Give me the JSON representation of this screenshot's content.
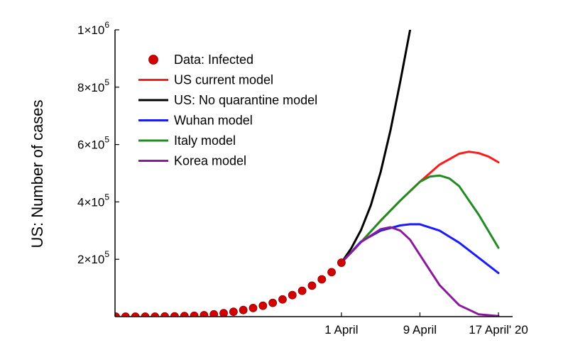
{
  "chart_data": {
    "type": "line",
    "title": "",
    "xlabel": "",
    "ylabel": "US: Number of cases",
    "y_tick_values": [
      200000,
      400000,
      600000,
      800000,
      1000000
    ],
    "y_tick_labels": [
      {
        "base": "2×10",
        "exp": "5"
      },
      {
        "base": "4×10",
        "exp": "5"
      },
      {
        "base": "6×10",
        "exp": "5"
      },
      {
        "base": "8×10",
        "exp": "5"
      },
      {
        "base": "1×10",
        "exp": "6"
      }
    ],
    "x_ticks": [
      {
        "x": 0,
        "label": "1 April"
      },
      {
        "x": 8,
        "label": "9 April"
      },
      {
        "x": 16,
        "label": "17 April' 20"
      }
    ],
    "xlim": [
      -23,
      16
    ],
    "ylim": [
      0,
      1000000
    ],
    "legend_position": "top-left",
    "series": [
      {
        "name": "Data: Infected",
        "kind": "points",
        "color": "#d40000",
        "x": [
          -23,
          -22,
          -21,
          -20,
          -19,
          -18,
          -17,
          -16,
          -15,
          -14,
          -13,
          -12,
          -11,
          -10,
          -9,
          -8,
          -7,
          -6,
          -5,
          -4,
          -3,
          -2,
          -1,
          0
        ],
        "y": [
          0,
          0,
          0,
          0,
          0,
          500,
          1000,
          2000,
          3000,
          5000,
          8000,
          12000,
          17000,
          23000,
          30000,
          38000,
          48000,
          60000,
          75000,
          90000,
          108000,
          130000,
          155000,
          188000
        ]
      },
      {
        "name": "US current model",
        "kind": "line",
        "color": "#ff1a1a",
        "x": [
          0,
          2,
          4,
          6,
          8,
          10,
          12,
          13,
          14,
          15,
          16
        ],
        "y": [
          188000,
          260000,
          335000,
          405000,
          470000,
          530000,
          568000,
          575000,
          570000,
          558000,
          538000
        ]
      },
      {
        "name": "US: No quarantine model",
        "kind": "line",
        "color": "#000000",
        "x": [
          0,
          1,
          2,
          3,
          4,
          5,
          6,
          7
        ],
        "y": [
          188000,
          238000,
          302000,
          388000,
          505000,
          650000,
          820000,
          1000000
        ]
      },
      {
        "name": "Wuhan model",
        "kind": "line",
        "color": "#1a1aff",
        "x": [
          0,
          2,
          4,
          6,
          7,
          8,
          10,
          12,
          14,
          16
        ],
        "y": [
          188000,
          262000,
          300000,
          318000,
          322000,
          322000,
          300000,
          258000,
          205000,
          152000
        ]
      },
      {
        "name": "Italy model",
        "kind": "line",
        "color": "#228b22",
        "x": [
          0,
          2,
          4,
          6,
          8,
          9,
          10,
          11,
          12,
          14,
          16
        ],
        "y": [
          188000,
          260000,
          335000,
          405000,
          470000,
          488000,
          492000,
          482000,
          455000,
          355000,
          240000
        ]
      },
      {
        "name": " Korea model",
        "kind": "line",
        "color": "#8b1a9a",
        "x": [
          0,
          2,
          4,
          5,
          6,
          7,
          8,
          10,
          12,
          14,
          16
        ],
        "y": [
          188000,
          260000,
          305000,
          312000,
          300000,
          268000,
          215000,
          110000,
          40000,
          8000,
          2000
        ]
      }
    ]
  }
}
